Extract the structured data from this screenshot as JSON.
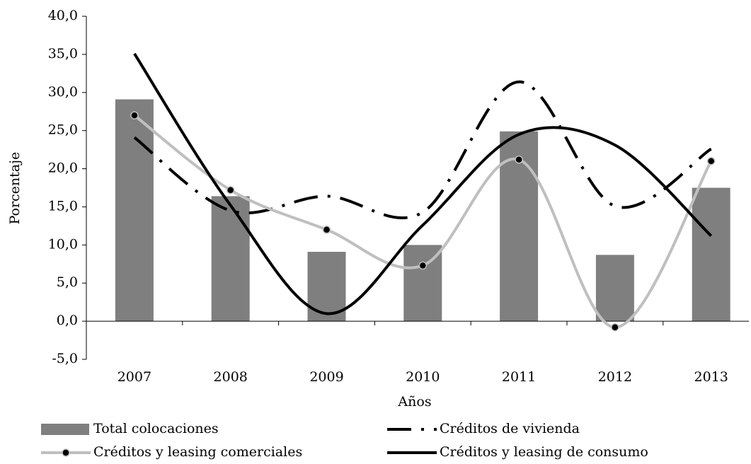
{
  "chart_data": {
    "type": "bar-line",
    "x_label": "Años",
    "y_label": "Porcentaje",
    "categories": [
      "2007",
      "2008",
      "2009",
      "2010",
      "2011",
      "2012",
      "2013"
    ],
    "series": [
      {
        "name": "Total colocaciones",
        "kind": "bar",
        "color": "#7f7f7f",
        "values": [
          29.1,
          16.4,
          9.1,
          10.0,
          24.9,
          8.7,
          17.5
        ]
      },
      {
        "name": "Créditos de vivienda",
        "kind": "dashdot",
        "color": "#000000",
        "values": [
          24.1,
          14.5,
          16.4,
          14.3,
          31.4,
          15.1,
          22.6
        ]
      },
      {
        "name": "Créditos y leasing comerciales",
        "kind": "marker",
        "color": "#bfbfbf",
        "values": [
          27.0,
          17.2,
          12.0,
          7.3,
          21.2,
          -0.8,
          21.0
        ]
      },
      {
        "name": "Créditos y leasing de consumo",
        "kind": "line",
        "color": "#000000",
        "values": [
          35.1,
          15.2,
          1.0,
          12.6,
          24.5,
          23.1,
          11.2
        ]
      }
    ],
    "ylim": [
      -5,
      40
    ],
    "yticks": [
      {
        "value": -5,
        "label": "-5,0"
      },
      {
        "value": 0,
        "label": "0,0"
      },
      {
        "value": 5,
        "label": "5,0"
      },
      {
        "value": 10,
        "label": "10,0"
      },
      {
        "value": 15,
        "label": "15,0"
      },
      {
        "value": 20,
        "label": "20,0"
      },
      {
        "value": 25,
        "label": "25,0"
      },
      {
        "value": 30,
        "label": "30,0"
      },
      {
        "value": 35,
        "label": "35,0"
      },
      {
        "value": 40,
        "label": "40,0"
      }
    ]
  }
}
